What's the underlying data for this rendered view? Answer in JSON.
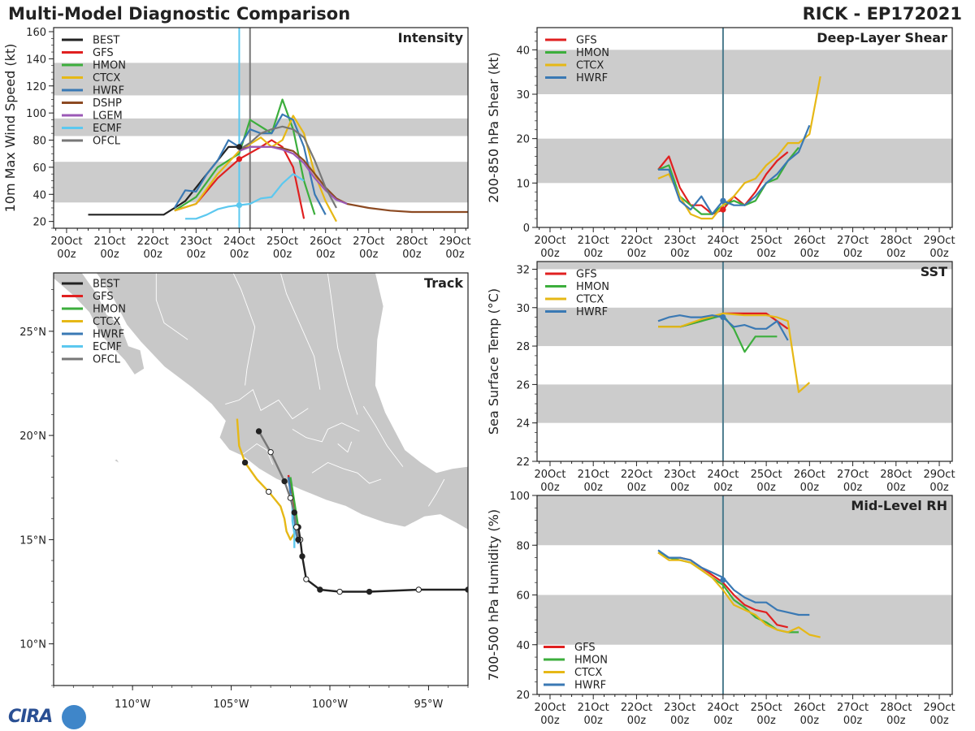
{
  "header": {
    "title": "Multi-Model Diagnostic Comparison",
    "storm_id": "RICK - EP172021"
  },
  "logo": {
    "text": "CIRA"
  },
  "colors": {
    "BEST": "#222222",
    "GFS": "#e02020",
    "HMON": "#3cae3c",
    "CTCX": "#e6b816",
    "HWRF": "#3a79b4",
    "DSHP": "#8c4a22",
    "LGEM": "#9b59b6",
    "ECMF": "#5cc8ef",
    "OFCL": "#777777",
    "band": "#cccccc",
    "land": "#c8c8c8"
  },
  "time_axis": {
    "tick_days": [
      20,
      21,
      22,
      23,
      24,
      25,
      26,
      27,
      28,
      29
    ],
    "tick_labels_top": [
      "20Oct",
      "21Oct",
      "22Oct",
      "23Oct",
      "24Oct",
      "25Oct",
      "26Oct",
      "27Oct",
      "28Oct",
      "29Oct"
    ],
    "tick_labels_bottom": [
      "00z",
      "00z",
      "00z",
      "00z",
      "00z",
      "00z",
      "00z",
      "00z",
      "00z",
      "00z"
    ],
    "xlim": [
      19.7,
      29.3
    ]
  },
  "chart_data": [
    {
      "id": "intensity",
      "type": "line",
      "title": "Intensity",
      "ylabel": "10m Max Wind Speed (kt)",
      "ylim": [
        15,
        163
      ],
      "yticks": [
        "20",
        "40",
        "60",
        "80",
        "100",
        "120",
        "140",
        "160"
      ],
      "bands": [
        [
          34,
          64
        ],
        [
          83,
          96
        ],
        [
          113,
          137
        ]
      ],
      "vlines": [
        {
          "x": 24.0,
          "color": "#5cc8ef"
        },
        {
          "x": 24.25,
          "color": "#777777"
        }
      ],
      "legend": [
        "BEST",
        "GFS",
        "HMON",
        "CTCX",
        "HWRF",
        "DSHP",
        "LGEM",
        "ECMF",
        "OFCL"
      ],
      "series": [
        {
          "name": "BEST",
          "x": [
            20.5,
            22.25,
            22.5,
            22.75,
            23,
            23.25,
            23.5,
            23.75,
            24
          ],
          "y": [
            25,
            25,
            30,
            35,
            45,
            55,
            65,
            75,
            75
          ]
        },
        {
          "name": "GFS",
          "x": [
            22.5,
            23,
            23.5,
            24,
            24.5,
            24.75,
            25,
            25.25,
            25.5
          ],
          "y": [
            28,
            33,
            52,
            66,
            75,
            80,
            75,
            60,
            22
          ]
        },
        {
          "name": "HMON",
          "x": [
            22.5,
            23,
            23.5,
            24,
            24.25,
            24.5,
            24.75,
            25,
            25.25,
            25.5,
            25.75
          ],
          "y": [
            28,
            38,
            60,
            70,
            95,
            90,
            85,
            110,
            88,
            50,
            25
          ]
        },
        {
          "name": "CTCX",
          "x": [
            22.5,
            23,
            23.5,
            24,
            24.25,
            24.5,
            24.75,
            25,
            25.25,
            25.5,
            25.75,
            26,
            26.25
          ],
          "y": [
            28,
            33,
            55,
            72,
            77,
            82,
            75,
            80,
            98,
            85,
            55,
            35,
            20
          ]
        },
        {
          "name": "HWRF",
          "x": [
            22.5,
            22.75,
            23,
            23.25,
            23.5,
            23.75,
            24,
            24.25,
            24.5,
            24.75,
            25,
            25.25,
            25.5,
            25.75,
            26
          ],
          "y": [
            30,
            43,
            42,
            55,
            65,
            80,
            75,
            88,
            85,
            85,
            99,
            95,
            75,
            40,
            25
          ]
        },
        {
          "name": "DSHP",
          "x": [
            24,
            24.25,
            24.5,
            24.75,
            25,
            25.25,
            25.5,
            25.75,
            26,
            26.25,
            26.5,
            27,
            27.5,
            28,
            28.5,
            29,
            29.3
          ],
          "y": [
            73,
            75,
            75,
            75,
            74,
            72,
            65,
            55,
            45,
            37,
            33,
            30,
            28,
            27,
            27,
            27,
            27
          ]
        },
        {
          "name": "LGEM",
          "x": [
            24,
            24.25,
            24.5,
            24.75,
            25,
            25.25,
            25.5,
            25.75,
            26,
            26.25,
            26.5
          ],
          "y": [
            72,
            75,
            75,
            75,
            73,
            70,
            63,
            52,
            43,
            36,
            33
          ]
        },
        {
          "name": "ECMF",
          "x": [
            22.75,
            23,
            23.25,
            23.5,
            23.75,
            24,
            24.25,
            24.5,
            24.75,
            25,
            25.25,
            25.5
          ],
          "y": [
            22,
            22,
            25,
            29,
            31,
            32,
            33,
            37,
            38,
            48,
            55,
            50
          ]
        },
        {
          "name": "OFCL",
          "x": [
            24,
            24.25,
            24.5,
            24.75,
            25,
            25.25,
            25.5,
            25.75,
            26,
            26.25
          ],
          "y": [
            73,
            78,
            85,
            88,
            90,
            88,
            82,
            65,
            45,
            30
          ]
        }
      ],
      "markers": [
        {
          "series": "BEST",
          "x": 24.0,
          "y": 75
        },
        {
          "series": "GFS",
          "x": 24.0,
          "y": 66
        },
        {
          "series": "ECMF",
          "x": 24.0,
          "y": 32
        }
      ]
    },
    {
      "id": "shear",
      "type": "line",
      "title": "Deep-Layer Shear",
      "ylabel": "200-850 hPa Shear (kt)",
      "ylim": [
        0,
        45
      ],
      "yticks": [
        "0",
        "10",
        "20",
        "30",
        "40"
      ],
      "bands": [
        [
          10,
          20
        ],
        [
          30,
          40
        ]
      ],
      "vlines": [
        {
          "x": 24.0,
          "color": "#4a7a8c"
        }
      ],
      "legend": [
        "GFS",
        "HMON",
        "CTCX",
        "HWRF"
      ],
      "series": [
        {
          "name": "GFS",
          "x": [
            22.5,
            22.75,
            23,
            23.25,
            23.5,
            23.75,
            24,
            24.25,
            24.5,
            24.75,
            25,
            25.25,
            25.5
          ],
          "y": [
            13,
            16,
            9,
            5,
            5,
            3,
            4,
            7,
            5,
            8,
            12,
            15,
            17
          ]
        },
        {
          "name": "HMON",
          "x": [
            22.5,
            22.75,
            23,
            23.25,
            23.5,
            23.75,
            24,
            24.25,
            24.5,
            24.75,
            25,
            25.25,
            25.5,
            25.75
          ],
          "y": [
            13,
            14,
            7,
            5,
            3,
            3,
            5,
            6,
            5,
            6,
            10,
            11,
            15,
            18
          ]
        },
        {
          "name": "CTCX",
          "x": [
            22.5,
            22.75,
            23,
            23.25,
            23.5,
            23.75,
            24,
            24.25,
            24.5,
            24.75,
            25,
            25.25,
            25.5,
            25.75,
            26,
            26.25
          ],
          "y": [
            11,
            12,
            7,
            3,
            2,
            2,
            5,
            7,
            10,
            11,
            14,
            16,
            19,
            19,
            21,
            34
          ]
        },
        {
          "name": "HWRF",
          "x": [
            22.5,
            22.75,
            23,
            23.25,
            23.5,
            23.75,
            24,
            24.25,
            24.5,
            24.75,
            25,
            25.25,
            25.5,
            25.75,
            26
          ],
          "y": [
            13,
            13,
            6,
            4,
            7,
            3,
            6,
            5,
            5,
            7,
            10,
            12,
            15,
            17,
            23
          ]
        }
      ],
      "markers": [
        {
          "series": "GFS",
          "x": 24.0,
          "y": 4
        },
        {
          "series": "HWRF",
          "x": 24.0,
          "y": 6
        }
      ]
    },
    {
      "id": "sst",
      "type": "line",
      "title": "SST",
      "ylabel": "Sea Surface Temp (°C)",
      "ylim": [
        22,
        32.4
      ],
      "yticks": [
        "22",
        "24",
        "26",
        "28",
        "30",
        "32"
      ],
      "bands": [
        [
          24,
          26
        ],
        [
          28,
          30
        ],
        [
          32,
          33
        ]
      ],
      "vlines": [
        {
          "x": 24.0,
          "color": "#4a7a8c"
        }
      ],
      "legend": [
        "GFS",
        "HMON",
        "CTCX",
        "HWRF"
      ],
      "series": [
        {
          "name": "GFS",
          "x": [
            22.5,
            23,
            23.5,
            24,
            24.5,
            25,
            25.25,
            25.5
          ],
          "y": [
            29.0,
            29.0,
            29.3,
            29.7,
            29.7,
            29.7,
            29.3,
            28.9
          ]
        },
        {
          "name": "HMON",
          "x": [
            22.5,
            23,
            23.5,
            24,
            24.25,
            24.5,
            24.75,
            25,
            25.25
          ],
          "y": [
            29.0,
            29.0,
            29.3,
            29.6,
            28.9,
            27.7,
            28.5,
            28.5,
            28.5
          ]
        },
        {
          "name": "CTCX",
          "x": [
            22.5,
            23,
            23.5,
            24,
            24.5,
            25,
            25.25,
            25.5,
            25.75,
            26
          ],
          "y": [
            29.0,
            29.0,
            29.4,
            29.7,
            29.6,
            29.6,
            29.5,
            29.3,
            25.6,
            26.1
          ]
        },
        {
          "name": "HWRF",
          "x": [
            22.5,
            22.75,
            23,
            23.25,
            23.5,
            23.75,
            24,
            24.25,
            24.5,
            24.75,
            25,
            25.25,
            25.5
          ],
          "y": [
            29.3,
            29.5,
            29.6,
            29.5,
            29.5,
            29.6,
            29.5,
            29.0,
            29.1,
            28.9,
            28.9,
            29.3,
            28.3
          ]
        }
      ],
      "markers": [
        {
          "series": "HWRF",
          "x": 24.0,
          "y": 29.5
        }
      ]
    },
    {
      "id": "rh",
      "type": "line",
      "title": "Mid-Level RH",
      "ylabel": "700-500 hPa Humidity (%)",
      "ylim": [
        20,
        100
      ],
      "yticks": [
        "20",
        "40",
        "60",
        "80",
        "100"
      ],
      "bands": [
        [
          40,
          60
        ],
        [
          80,
          100
        ]
      ],
      "vlines": [
        {
          "x": 24.0,
          "color": "#4a7a8c"
        }
      ],
      "legend": [
        "GFS",
        "HMON",
        "CTCX",
        "HWRF"
      ],
      "series": [
        {
          "name": "GFS",
          "x": [
            22.5,
            22.75,
            23,
            23.25,
            23.5,
            23.75,
            24,
            24.25,
            24.5,
            24.75,
            25,
            25.25,
            25.5
          ],
          "y": [
            77,
            75,
            75,
            74,
            71,
            68,
            65,
            60,
            56,
            54,
            53,
            48,
            47
          ]
        },
        {
          "name": "HMON",
          "x": [
            22.5,
            22.75,
            23,
            23.25,
            23.5,
            23.75,
            24,
            24.25,
            24.5,
            24.75,
            25,
            25.25,
            25.5,
            25.75
          ],
          "y": [
            77,
            75,
            74,
            73,
            70,
            67,
            64,
            58,
            55,
            51,
            49,
            46,
            45,
            45
          ]
        },
        {
          "name": "CTCX",
          "x": [
            22.5,
            22.75,
            23,
            23.25,
            23.5,
            23.75,
            24,
            24.25,
            24.5,
            24.75,
            25,
            25.25,
            25.5,
            25.75,
            26,
            26.25
          ],
          "y": [
            77,
            74,
            74,
            73,
            70,
            67,
            62,
            56,
            54,
            52,
            48,
            46,
            45,
            47,
            44,
            43
          ]
        },
        {
          "name": "HWRF",
          "x": [
            22.5,
            22.75,
            23,
            23.25,
            23.5,
            23.75,
            24,
            24.25,
            24.5,
            24.75,
            25,
            25.25,
            25.5,
            25.75,
            26
          ],
          "y": [
            78,
            75,
            75,
            74,
            71,
            69,
            67,
            62,
            59,
            57,
            57,
            54,
            53,
            52,
            52
          ]
        }
      ],
      "markers": [
        {
          "series": "HWRF",
          "x": 24.0,
          "y": 66
        }
      ]
    },
    {
      "id": "track",
      "type": "scatter",
      "title": "Track",
      "xlim": [
        -114,
        -93
      ],
      "ylim": [
        8,
        27.8
      ],
      "xticks": [
        -110,
        -105,
        -100,
        -95
      ],
      "xtick_labels": [
        "110°W",
        "105°W",
        "100°W",
        "95°W"
      ],
      "yticks": [
        10,
        15,
        20,
        25
      ],
      "ytick_labels": [
        "10°N",
        "15°N",
        "20°N",
        "25°N"
      ],
      "legend": [
        "BEST",
        "GFS",
        "HMON",
        "CTCX",
        "HWRF",
        "ECMF",
        "OFCL"
      ],
      "series": [
        {
          "name": "BEST",
          "lon": [
            -93.0,
            -95.5,
            -98,
            -99.5,
            -100.5,
            -101.2,
            -101.4,
            -101.5,
            -101.6
          ],
          "lat": [
            12.6,
            12.6,
            12.5,
            12.5,
            12.6,
            13.1,
            14.2,
            15.0,
            15.6
          ]
        },
        {
          "name": "GFS",
          "lon": [
            -101.6,
            -101.8,
            -101.9,
            -102.0,
            -102.1
          ],
          "lat": [
            15.6,
            16.2,
            16.9,
            17.5,
            18.1
          ]
        },
        {
          "name": "HMON",
          "lon": [
            -101.6,
            -101.7,
            -101.8,
            -101.9,
            -102.0
          ],
          "lat": [
            15.6,
            16.2,
            16.8,
            17.4,
            18.0
          ]
        },
        {
          "name": "CTCX",
          "lon": [
            -101.6,
            -102.0,
            -102.2,
            -102.3,
            -102.5,
            -103.1,
            -103.7,
            -104.3,
            -104.6,
            -104.7
          ],
          "lat": [
            15.6,
            15.0,
            15.4,
            16.0,
            16.6,
            17.3,
            17.9,
            18.7,
            19.5,
            20.8
          ]
        },
        {
          "name": "HWRF",
          "lon": [
            -101.6,
            -101.7,
            -101.8,
            -101.9,
            -102.0,
            -102.1
          ],
          "lat": [
            14.8,
            15.3,
            16.0,
            16.6,
            17.3,
            18.0
          ]
        },
        {
          "name": "ECMF",
          "lon": [
            -101.8,
            -101.8,
            -101.9,
            -101.9,
            -102.0
          ],
          "lat": [
            14.6,
            15.3,
            15.9,
            16.6,
            17.2
          ]
        },
        {
          "name": "OFCL",
          "lon": [
            -101.6,
            -101.7,
            -101.8,
            -102.0,
            -102.3,
            -103.0,
            -103.6
          ],
          "lat": [
            15.0,
            15.6,
            16.3,
            17.0,
            17.8,
            19.2,
            20.2
          ]
        }
      ]
    }
  ]
}
